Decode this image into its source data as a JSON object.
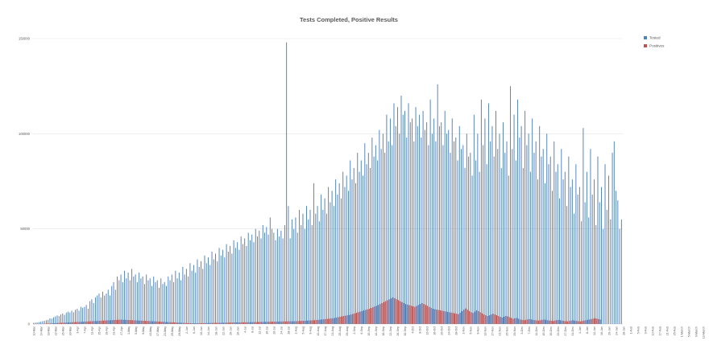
{
  "chart_data": {
    "type": "bar",
    "title": "Tests Completed, Positive Results",
    "xlabel": "",
    "ylabel": "",
    "ylim": [
      0,
      150000
    ],
    "y_ticks": [
      0,
      50000,
      100000,
      150000
    ],
    "y_tick_labels": [
      "0",
      "50000",
      "100000",
      "150000"
    ],
    "grid": true,
    "legend_position": "top-right",
    "x_tick_labels": [
      "10-Mar",
      "14-Mar",
      "18-Mar",
      "22-Mar",
      "26-Mar",
      "30-Mar",
      "3-Apr",
      "7-Apr",
      "11-Apr",
      "15-Apr",
      "19-Apr",
      "23-Apr",
      "27-Apr",
      "1-May",
      "5-May",
      "9-May",
      "13-May",
      "17-May",
      "21-May",
      "25-May",
      "29-May",
      "2-Jun",
      "6-Jun",
      "10-Jun",
      "14-Jun",
      "18-Jun",
      "22-Jun",
      "26-Jun",
      "30-Jun",
      "4-Jul",
      "8-Jul",
      "12-Jul",
      "16-Jul",
      "20-Jul",
      "24-Jul",
      "28-Jul",
      "1-Aug",
      "5-Aug",
      "9-Aug",
      "13-Aug",
      "17-Aug",
      "21-Aug",
      "25-Aug",
      "29-Aug",
      "2-Sep",
      "6-Sep",
      "10-Sep",
      "14-Sep",
      "18-Sep",
      "22-Sep",
      "26-Sep",
      "30-Sep",
      "4-Oct",
      "8-Oct",
      "12-Oct",
      "16-Oct",
      "20-Oct",
      "24-Oct",
      "28-Oct",
      "1-Nov",
      "5-Nov",
      "9-Nov",
      "13-Nov",
      "17-Nov",
      "21-Nov",
      "25-Nov",
      "29-Nov",
      "3-Dec",
      "7-Dec",
      "11-Dec",
      "15-Dec",
      "19-Dec",
      "23-Dec",
      "27-Dec",
      "31-Dec",
      "4-Jan",
      "8-Jan",
      "12-Jan",
      "16-Jan",
      "20-Jan",
      "24-Jan",
      "28-Jan",
      "1-Feb",
      "5-Feb",
      "9-Feb",
      "13-Feb",
      "17-Feb",
      "21-Feb",
      "25-Feb",
      "1-March",
      "5-March",
      "9-March",
      "13-March",
      "17-March",
      "21-March",
      "25-March",
      "29-March"
    ],
    "points_per_label": 4,
    "series": [
      {
        "name": "Tested",
        "color": "#4f81bd",
        "values": [
          600,
          700,
          800,
          1000,
          1200,
          1500,
          1700,
          2000,
          2200,
          3000,
          2800,
          3500,
          4000,
          4500,
          4200,
          5000,
          5500,
          4800,
          6000,
          6500,
          6000,
          7000,
          6200,
          7500,
          8000,
          7000,
          9000,
          8500,
          9000,
          10000,
          8000,
          12000,
          13000,
          11000,
          14000,
          15000,
          16000,
          14000,
          17000,
          15000,
          16000,
          18000,
          15000,
          20000,
          22000,
          18000,
          25000,
          23000,
          26000,
          22000,
          28000,
          24000,
          27000,
          23000,
          29000,
          25000,
          26000,
          22000,
          27000,
          24000,
          25000,
          21000,
          26000,
          23000,
          24000,
          20000,
          25000,
          22000,
          23000,
          19000,
          24000,
          21000,
          22000,
          20000,
          25000,
          23000,
          26000,
          22000,
          28000,
          24000,
          27000,
          23000,
          30000,
          26000,
          29000,
          25000,
          32000,
          28000,
          31000,
          27000,
          34000,
          30000,
          33000,
          29000,
          36000,
          32000,
          35000,
          31000,
          38000,
          34000,
          37000,
          33000,
          40000,
          36000,
          39000,
          35000,
          42000,
          38000,
          41000,
          37000,
          44000,
          40000,
          43000,
          39000,
          46000,
          42000,
          45000,
          41000,
          48000,
          44000,
          47000,
          43000,
          50000,
          46000,
          49000,
          45000,
          52000,
          48000,
          51000,
          47000,
          56000,
          50000,
          48000,
          44000,
          50000,
          46000,
          49000,
          45000,
          52000,
          148000,
          62000,
          45000,
          55000,
          50000,
          56000,
          48000,
          60000,
          52000,
          58000,
          50000,
          62000,
          55000,
          60000,
          52000,
          74000,
          58000,
          62000,
          54000,
          68000,
          60000,
          66000,
          58000,
          72000,
          64000,
          70000,
          62000,
          76000,
          68000,
          74000,
          66000,
          80000,
          72000,
          78000,
          70000,
          86000,
          76000,
          82000,
          74000,
          90000,
          80000,
          86000,
          78000,
          95000,
          84000,
          90000,
          82000,
          98000,
          88000,
          94000,
          86000,
          102000,
          92000,
          100000,
          90000,
          110000,
          96000,
          108000,
          94000,
          116000,
          104000,
          114000,
          100000,
          120000,
          110000,
          112000,
          98000,
          116000,
          106000,
          108000,
          96000,
          114000,
          104000,
          110000,
          98000,
          112000,
          102000,
          106000,
          94000,
          118000,
          100000,
          108000,
          96000,
          126000,
          104000,
          106000,
          94000,
          112000,
          100000,
          102000,
          90000,
          108000,
          96000,
          98000,
          86000,
          104000,
          92000,
          94000,
          82000,
          100000,
          88000,
          90000,
          78000,
          110000,
          86000,
          100000,
          80000,
          118000,
          94000,
          108000,
          84000,
          116000,
          96000,
          104000,
          88000,
          112000,
          92000,
          100000,
          82000,
          106000,
          90000,
          96000,
          78000,
          125000,
          92000,
          110000,
          86000,
          118000,
          98000,
          104000,
          82000,
          112000,
          94000,
          100000,
          80000,
          108000,
          90000,
          96000,
          76000,
          104000,
          88000,
          92000,
          74000,
          100000,
          84000,
          88000,
          70000,
          96000,
          80000,
          84000,
          66000,
          92000,
          76000,
          80000,
          62000,
          88000,
          72000,
          76000,
          58000,
          84000,
          68000,
          72000,
          54000,
          103000,
          64000,
          80000,
          56000,
          92000,
          68000,
          76000,
          52000,
          88000,
          64000,
          72000,
          50000,
          84000,
          60000,
          78000,
          55000,
          90000,
          96000,
          70000,
          65000,
          50000,
          55000
        ]
      },
      {
        "name": "Positives",
        "color": "#c0504d",
        "values": [
          50,
          60,
          80,
          100,
          120,
          150,
          200,
          250,
          300,
          350,
          400,
          450,
          500,
          550,
          600,
          650,
          700,
          750,
          800,
          850,
          900,
          950,
          1000,
          1050,
          1100,
          1150,
          1200,
          1250,
          1300,
          1350,
          1400,
          1450,
          1500,
          1550,
          1600,
          1650,
          1700,
          1750,
          1800,
          1850,
          1900,
          1950,
          2000,
          2050,
          2100,
          2150,
          2200,
          2250,
          2300,
          2250,
          2200,
          2150,
          2100,
          2050,
          2000,
          1950,
          1900,
          1850,
          1800,
          1750,
          1700,
          1650,
          1600,
          1550,
          1500,
          1450,
          1400,
          1350,
          1300,
          1250,
          1200,
          1150,
          1100,
          1050,
          1000,
          950,
          900,
          850,
          800,
          750,
          700,
          650,
          600,
          550,
          500,
          480,
          460,
          440,
          420,
          400,
          420,
          440,
          460,
          480,
          500,
          520,
          540,
          560,
          580,
          600,
          620,
          640,
          660,
          680,
          700,
          720,
          740,
          760,
          780,
          800,
          820,
          840,
          860,
          880,
          900,
          920,
          940,
          960,
          980,
          1000,
          1020,
          1040,
          1060,
          1080,
          1100,
          1120,
          1140,
          1160,
          1180,
          1200,
          1220,
          1240,
          1260,
          1280,
          1300,
          1320,
          1340,
          1360,
          1380,
          1400,
          1420,
          1440,
          1460,
          1480,
          1500,
          1550,
          1600,
          1650,
          1700,
          1750,
          1800,
          1850,
          1900,
          1950,
          2000,
          2100,
          2200,
          2300,
          2400,
          2500,
          2600,
          2700,
          2800,
          2900,
          3000,
          3200,
          3400,
          3600,
          3800,
          4000,
          4200,
          4400,
          4600,
          4800,
          5000,
          5300,
          5600,
          5900,
          6200,
          6500,
          6800,
          7100,
          7400,
          7700,
          8000,
          8400,
          8800,
          9200,
          9600,
          10000,
          10500,
          11000,
          11500,
          12000,
          12500,
          13000,
          13500,
          14000,
          13500,
          13000,
          12500,
          12000,
          11500,
          11000,
          10500,
          10200,
          9900,
          9600,
          9300,
          9000,
          9500,
          10000,
          10500,
          11000,
          10500,
          10000,
          9500,
          9000,
          8500,
          8000,
          7800,
          7600,
          7400,
          7200,
          7000,
          6800,
          6600,
          6400,
          6200,
          6000,
          5800,
          5600,
          5400,
          5200,
          6000,
          6800,
          7500,
          8200,
          7500,
          6800,
          6200,
          5800,
          6500,
          7200,
          6800,
          6200,
          5600,
          5000,
          4600,
          4200,
          4600,
          5000,
          5400,
          5000,
          4600,
          4200,
          3800,
          3400,
          3800,
          4200,
          4000,
          3600,
          3200,
          2800,
          3000,
          3200,
          2800,
          2400,
          2200,
          2000,
          2200,
          2400,
          2600,
          2400,
          2200,
          2000,
          1900,
          1800,
          2000,
          2200,
          2400,
          2200,
          2000,
          1800,
          1700,
          1600,
          1800,
          2000,
          2200,
          2000,
          1800,
          1600,
          1500,
          1400,
          1600,
          1800,
          2000,
          1800,
          1600,
          1500,
          1400,
          1600,
          1800,
          2000,
          2200,
          2400,
          2600,
          2800,
          3000,
          2800,
          2600,
          2400
        ]
      }
    ]
  }
}
